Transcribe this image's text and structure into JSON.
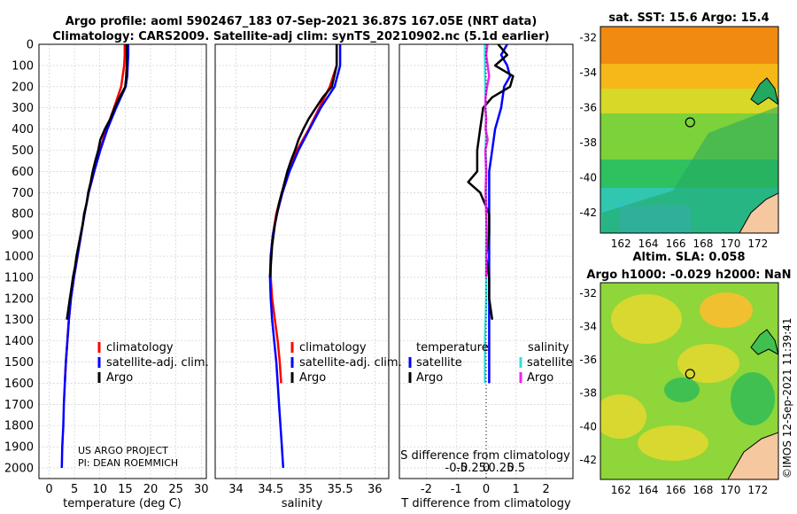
{
  "title": {
    "line1": "Argo profile: aoml 5902467_183 07-Sep-2021 36.87S 167.05E (NRT data)",
    "line2": "Climatology: CARS2009. Satellite-adj clim: synTS_20210902.nc (5.1d earlier)"
  },
  "colors": {
    "climatology": "#ff0000",
    "satellite_adj": "#0000ff",
    "argo": "#000000",
    "sat_salinity": "#33dddd",
    "argo_salinity": "#ee22ee",
    "grid": "#c8c8c8"
  },
  "depth_axis": {
    "ticks": [
      "0",
      "100",
      "200",
      "300",
      "400",
      "500",
      "600",
      "700",
      "800",
      "900",
      "1000",
      "1100",
      "1200",
      "1300",
      "1400",
      "1500",
      "1600",
      "1700",
      "1800",
      "1900",
      "2000"
    ]
  },
  "chart_data": [
    {
      "type": "line",
      "name": "temperature-profile",
      "xlabel": "temperature (deg C)",
      "ylabel": "depth",
      "xlim": [
        -2,
        31
      ],
      "ylim": [
        2050,
        0
      ],
      "xticks": [
        "0",
        "5",
        "10",
        "15",
        "20",
        "25",
        "30"
      ],
      "xtick_values": [
        0,
        5,
        10,
        15,
        20,
        25,
        30
      ],
      "legend_position": "middle-right",
      "legend": [
        "climatology",
        "satellite-adj. clim.",
        "Argo"
      ],
      "annotations": [
        "US ARGO PROJECT",
        "PI: DEAN ROEMMICH"
      ],
      "series": [
        {
          "name": "climatology",
          "color_key": "climatology",
          "depth": [
            0,
            50,
            100,
            150,
            200,
            300,
            400,
            500,
            600,
            700,
            800,
            900,
            1000,
            1100,
            1200,
            1300,
            1400,
            1500,
            1600
          ],
          "values": [
            14.9,
            14.9,
            14.8,
            14.5,
            14.2,
            12.8,
            11.3,
            10.0,
            8.9,
            7.8,
            7.0,
            6.3,
            5.6,
            4.9,
            4.3,
            3.9,
            3.6,
            3.3,
            3.1
          ]
        },
        {
          "name": "satellite-adj. clim.",
          "color_key": "satellite_adj",
          "depth": [
            0,
            50,
            100,
            150,
            200,
            300,
            400,
            500,
            600,
            700,
            800,
            900,
            1000,
            1100,
            1200,
            1300,
            1400,
            1500,
            1600,
            1700,
            1800,
            1900,
            2000
          ],
          "values": [
            15.6,
            15.6,
            15.5,
            15.4,
            15.1,
            13.2,
            11.5,
            10.1,
            8.9,
            7.8,
            7.0,
            6.3,
            5.6,
            4.9,
            4.3,
            3.9,
            3.6,
            3.3,
            3.1,
            2.9,
            2.8,
            2.6,
            2.5
          ]
        },
        {
          "name": "Argo",
          "color_key": "argo",
          "depth": [
            0,
            50,
            100,
            150,
            200,
            250,
            300,
            350,
            400,
            450,
            500,
            550,
            600,
            650,
            700,
            750,
            800,
            850,
            900,
            950,
            1000,
            1050,
            1100,
            1150,
            1200,
            1250,
            1300
          ],
          "values": [
            15.3,
            15.3,
            15.3,
            15.2,
            15.0,
            13.9,
            12.9,
            12.1,
            11.0,
            10.1,
            9.7,
            9.1,
            8.6,
            8.2,
            7.7,
            7.4,
            6.9,
            6.6,
            6.2,
            5.8,
            5.4,
            5.1,
            4.7,
            4.4,
            4.1,
            3.8,
            3.5
          ]
        }
      ]
    },
    {
      "type": "line",
      "name": "salinity-profile",
      "xlabel": "salinity",
      "ylabel": "depth",
      "xlim": [
        33.7,
        36.2
      ],
      "ylim": [
        2050,
        0
      ],
      "xticks": [
        "34",
        "34.5",
        "35",
        "35.5",
        "36"
      ],
      "xtick_values": [
        34,
        34.5,
        35,
        35.5,
        36
      ],
      "legend_position": "middle-right",
      "legend": [
        "climatology",
        "satellite-adj. clim.",
        "Argo"
      ],
      "series": [
        {
          "name": "climatology",
          "color_key": "climatology",
          "depth": [
            0,
            100,
            200,
            300,
            400,
            500,
            600,
            700,
            800,
            900,
            1000,
            1100,
            1200,
            1300,
            1400,
            1500,
            1600
          ],
          "values": [
            35.45,
            35.45,
            35.35,
            35.2,
            35.05,
            34.88,
            34.76,
            34.66,
            34.58,
            34.53,
            34.5,
            34.5,
            34.52,
            34.56,
            34.6,
            34.63,
            34.65
          ]
        },
        {
          "name": "satellite-adj. clim.",
          "color_key": "satellite_adj",
          "depth": [
            0,
            100,
            200,
            300,
            400,
            500,
            600,
            700,
            800,
            900,
            1000,
            1100,
            1200,
            1300,
            1400,
            1500,
            1600,
            1700,
            1800,
            1900,
            2000
          ],
          "values": [
            35.5,
            35.5,
            35.42,
            35.22,
            35.06,
            34.9,
            34.77,
            34.67,
            34.59,
            34.53,
            34.5,
            34.49,
            34.5,
            34.52,
            34.55,
            34.58,
            34.6,
            34.62,
            34.64,
            34.66,
            34.68
          ]
        },
        {
          "name": "Argo",
          "color_key": "argo",
          "depth": [
            0,
            100,
            200,
            250,
            300,
            350,
            400,
            450,
            500,
            550,
            600,
            650,
            700,
            750,
            800,
            850,
            900,
            950,
            1000,
            1050,
            1100
          ],
          "values": [
            35.45,
            35.45,
            35.38,
            35.25,
            35.15,
            35.05,
            34.97,
            34.9,
            34.85,
            34.79,
            34.74,
            34.7,
            34.66,
            34.62,
            34.59,
            34.56,
            34.54,
            34.52,
            34.51,
            34.5,
            34.49
          ]
        }
      ]
    },
    {
      "type": "line",
      "name": "difference-profile",
      "xlabel": "T difference from climatology",
      "xlabel_top": "S difference from climatology",
      "ylim": [
        2050,
        0
      ],
      "xlim": [
        -2.9,
        2.9
      ],
      "xticks": [
        "-2",
        "-1",
        "0",
        "1",
        "2"
      ],
      "xtick_values": [
        -2,
        -1,
        0,
        1,
        2
      ],
      "salinity_ticks": [
        "-0.5",
        "-0.25",
        "0",
        "0.25",
        "0.5"
      ],
      "salinity_tick_values": [
        -0.5,
        -0.25,
        0,
        0.25,
        0.5
      ],
      "legend_position": "middle",
      "legend_group_temperature": "temperature",
      "legend_group_salinity": "salinity",
      "legend_temperature": [
        "satellite",
        "Argo"
      ],
      "legend_salinity": [
        "satellite",
        "Argo"
      ],
      "series": [
        {
          "name": "T satellite",
          "color_key": "satellite_adj",
          "depth": [
            0,
            50,
            100,
            150,
            200,
            300,
            400,
            500,
            600,
            700,
            800,
            900,
            1000,
            1100,
            1200,
            1300,
            1400,
            1500,
            1600
          ],
          "values": [
            0.7,
            0.5,
            0.7,
            0.8,
            0.6,
            0.5,
            0.3,
            0.2,
            0.1,
            0.1,
            0.1,
            0.1,
            0.1,
            0.1,
            0.1,
            0.1,
            0.1,
            0.1,
            0.1
          ]
        },
        {
          "name": "T Argo",
          "color_key": "argo",
          "depth": [
            0,
            50,
            100,
            150,
            200,
            250,
            300,
            400,
            500,
            600,
            650,
            700,
            800,
            900,
            1000,
            1100,
            1200,
            1300
          ],
          "values": [
            0.4,
            0.7,
            0.3,
            0.9,
            0.8,
            0.2,
            -0.1,
            -0.2,
            -0.3,
            -0.3,
            -0.6,
            -0.2,
            0.1,
            0.1,
            0.0,
            0.1,
            0.1,
            0.2
          ]
        },
        {
          "name": "S satellite",
          "color_key": "sat_salinity",
          "depth": [
            0,
            100,
            200,
            300,
            400,
            500,
            600,
            700,
            800,
            900,
            1000,
            1100,
            1200,
            1300,
            1400,
            1500,
            1600
          ],
          "values": [
            -0.04,
            -0.04,
            -0.03,
            -0.02,
            0.0,
            -0.02,
            0.0,
            0.0,
            0.01,
            0.0,
            0.0,
            0.0,
            0.0,
            -0.02,
            -0.04,
            -0.04,
            -0.04
          ]
        },
        {
          "name": "S Argo",
          "color_key": "argo_salinity",
          "depth": [
            0,
            50,
            100,
            150,
            200,
            250,
            300,
            350,
            400,
            450,
            500,
            600,
            700,
            800,
            900,
            1000,
            1100
          ],
          "values": [
            0.04,
            0.0,
            0.05,
            0.1,
            0.03,
            -0.02,
            -0.03,
            0.0,
            -0.02,
            0.05,
            -0.03,
            0.0,
            -0.02,
            0.0,
            0.02,
            0.01,
            0.0
          ]
        }
      ]
    }
  ],
  "maps": {
    "xticks": [
      "162",
      "164",
      "166",
      "168",
      "170",
      "172"
    ],
    "xtick_values": [
      162,
      164,
      166,
      168,
      170,
      172
    ],
    "yticks": [
      "-32",
      "-34",
      "-36",
      "-38",
      "-40",
      "-42"
    ],
    "ytick_values": [
      -32,
      -34,
      -36,
      -38,
      -40,
      -42
    ],
    "lon_range": [
      160.5,
      173.5
    ],
    "lat_range": [
      -31.4,
      -43.2
    ],
    "float_lon": 167.05,
    "float_lat": -36.87,
    "sst_title": "sat. SST: 15.6 Argo: 15.4",
    "sla_title_line1": "Altim. SLA: 0.058",
    "sla_title_line2": "Argo h1000: -0.029 h2000: NaN"
  },
  "credit": "©IMOS 12-Sep-2021 11:39:41"
}
